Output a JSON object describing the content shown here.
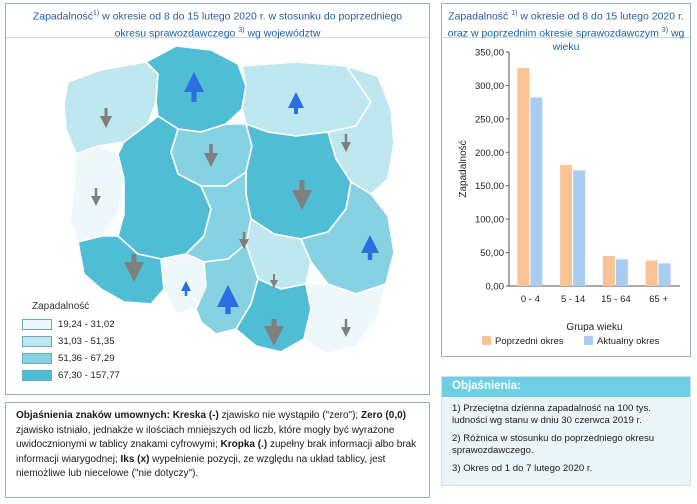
{
  "map_panel": {
    "title_line1": "Zapadalność",
    "title_sup1": "1)",
    "title_line1_rest": " w okresie od 8 do 15 lutego 2020 r. w stosunku do poprzedniego",
    "title_line2": "okresu sprawozdawczego",
    "title_sup2": "3)",
    "title_line2_rest": " wg województw",
    "legend_title": "Zapadalność",
    "legend": [
      {
        "label": "19,24 - 31,02",
        "color": "#eef8fb"
      },
      {
        "label": "31,03 - 51,35",
        "color": "#bfe7ef"
      },
      {
        "label": "51,36 - 67,29",
        "color": "#87d2e2"
      },
      {
        "label": "67,30 - 157,77",
        "color": "#4fbdd3"
      }
    ]
  },
  "chart_data": {
    "type": "bar",
    "title": "Zapadalność 1) w okresie od 8 do 15 lutego 2020 r. oraz w poprzednim okresie sprawozdawczym 3) wg wieku",
    "title_line1": "Zapadalność",
    "title_sup1": "1)",
    "title_line1_rest": " w okresie od 8 do 15 lutego 2020 r.",
    "title_line2": "oraz w poprzednim okresie sprawozdawczym",
    "title_sup2": "3)",
    "title_line2_rest": " wg wieku",
    "xlabel": "Grupa wieku",
    "ylabel": "Zapadalność",
    "categories": [
      "0 - 4",
      "5 - 14",
      "15 - 64",
      "65 +"
    ],
    "series": [
      {
        "name": "Poprzedni okres",
        "color": "#f9c393",
        "values": [
          326,
          181,
          45,
          38
        ]
      },
      {
        "name": "Aktualny okres",
        "color": "#a9cdf1",
        "values": [
          282,
          173,
          40,
          34
        ]
      }
    ],
    "ylim": [
      0,
      350
    ],
    "yticks": [
      "0,00",
      "50,00",
      "100,00",
      "150,00",
      "200,00",
      "250,00",
      "300,00",
      "350,00"
    ],
    "grid": false,
    "legend_position": "bottom"
  },
  "legend_box": {
    "bold1": "Objaśnienia znaków umownych: Kreska (-)",
    "text1": " zjawisko nie wystąpiło (\"zero\"); ",
    "bold2": "Zero (0,0)",
    "text2": " zjawisko istniało, jednakże w ilościach mniejszych od liczb, które mogły być wyrażone uwidocznionymi w tablicy znakami cyfrowymi; ",
    "bold3": "Kropka (.)",
    "text3": " zupełny brak informacji albo brak informacji wiarygodnej; ",
    "bold4": "Iks (x)",
    "text4": " wypełnienie pozycji, ze względu na układ tablicy, jest niemożliwe lub niecelowe (\"nie dotyczy\")."
  },
  "notes": {
    "heading": "Objaśnienia:",
    "items": [
      "1) Przeciętna dzienna zapadalność na 100 tys. ludności wg stanu w dniu 30 czerwca 2019 r.",
      "2) Różnica w stosunku do poprzedniego okresu sprawozdawczego.",
      "3) Okres od 1 do 7 lutego 2020 r."
    ]
  }
}
